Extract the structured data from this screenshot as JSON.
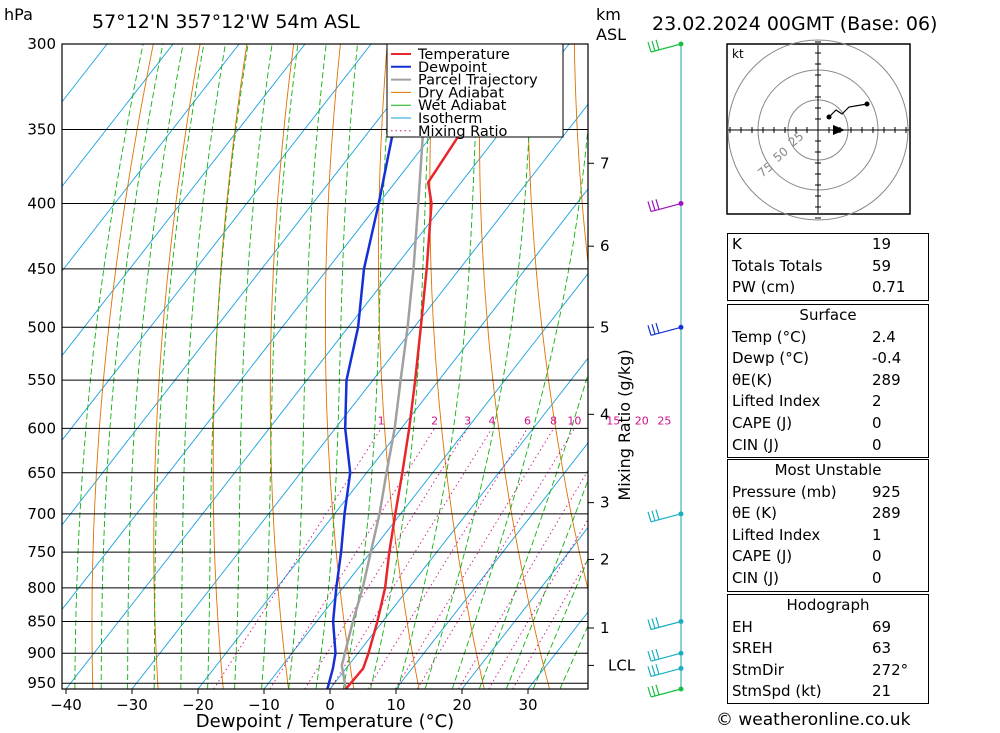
{
  "header": {
    "hpa_unit": "hPa",
    "location": "57°12'N  357°12'W  54m  ASL",
    "km_unit": "km",
    "asl_unit": "ASL",
    "datetime": "23.02.2024  00GMT  (Base: 06)"
  },
  "chart_data": {
    "type": "skew-t",
    "xlabel": "Dewpoint / Temperature (°C)",
    "ylabel_right": "Mixing Ratio (g/kg)",
    "temp_ticks": [
      -40,
      -30,
      -20,
      -10,
      0,
      10,
      20,
      30
    ],
    "pressure_levels": [
      300,
      350,
      400,
      450,
      500,
      550,
      600,
      650,
      700,
      750,
      800,
      850,
      900,
      950
    ],
    "km_ticks": [
      {
        "label": "7",
        "p": 372
      },
      {
        "label": "6",
        "p": 432
      },
      {
        "label": "5",
        "p": 500
      },
      {
        "label": "4",
        "p": 585
      },
      {
        "label": "3",
        "p": 686
      },
      {
        "label": "2",
        "p": 760
      },
      {
        "label": "1",
        "p": 860
      },
      {
        "label": "LCL",
        "p": 920
      }
    ],
    "mixing_ratio_labels": [
      "1",
      "2",
      "3",
      "4",
      "6",
      "8",
      "10",
      "15",
      "20",
      "25"
    ],
    "mixing_ratio_values": [
      1,
      2,
      3,
      4,
      6,
      8,
      10,
      15,
      20,
      25
    ],
    "legend": [
      "Temperature",
      "Dewpoint",
      "Parcel Trajectory",
      "Dry Adiabat",
      "Wet Adiabat",
      "Isotherm",
      "Mixing Ratio"
    ],
    "colors": {
      "temperature": "#e8262a",
      "dewpoint": "#1431d6",
      "parcel": "#a0a0a0",
      "dry_adiabat": "#e07000",
      "wet_adiabat": "#10b010",
      "isotherm": "#18a0e0",
      "mixing_ratio": "#d0108c"
    },
    "temperature_profile": [
      {
        "p": 960,
        "t": 2.4
      },
      {
        "p": 925,
        "t": 2.6
      },
      {
        "p": 900,
        "t": 1.6
      },
      {
        "p": 850,
        "t": -0.8
      },
      {
        "p": 800,
        "t": -3.6
      },
      {
        "p": 750,
        "t": -7.2
      },
      {
        "p": 700,
        "t": -10.8
      },
      {
        "p": 650,
        "t": -14.6
      },
      {
        "p": 600,
        "t": -18.8
      },
      {
        "p": 550,
        "t": -23.6
      },
      {
        "p": 500,
        "t": -29.0
      },
      {
        "p": 450,
        "t": -35.0
      },
      {
        "p": 400,
        "t": -42.0
      },
      {
        "p": 385,
        "t": -45.0
      },
      {
        "p": 350,
        "t": -46.0
      },
      {
        "p": 300,
        "t": -49.5
      }
    ],
    "dewpoint_profile": [
      {
        "p": 960,
        "t": -0.4
      },
      {
        "p": 925,
        "t": -2.0
      },
      {
        "p": 900,
        "t": -3.4
      },
      {
        "p": 850,
        "t": -7.5
      },
      {
        "p": 800,
        "t": -11.0
      },
      {
        "p": 750,
        "t": -14.5
      },
      {
        "p": 700,
        "t": -18.5
      },
      {
        "p": 650,
        "t": -22.5
      },
      {
        "p": 600,
        "t": -28.5
      },
      {
        "p": 550,
        "t": -34.0
      },
      {
        "p": 500,
        "t": -38.5
      },
      {
        "p": 450,
        "t": -44.5
      },
      {
        "p": 400,
        "t": -50.0
      },
      {
        "p": 350,
        "t": -56.5
      },
      {
        "p": 300,
        "t": -62.0
      }
    ],
    "parcel_profile": [
      {
        "p": 960,
        "t": 2.4
      },
      {
        "p": 920,
        "t": -1.0
      },
      {
        "p": 850,
        "t": -4.5
      },
      {
        "p": 800,
        "t": -7.0
      },
      {
        "p": 750,
        "t": -10.0
      },
      {
        "p": 700,
        "t": -13.2
      },
      {
        "p": 650,
        "t": -17.0
      },
      {
        "p": 600,
        "t": -21.0
      },
      {
        "p": 550,
        "t": -25.8
      },
      {
        "p": 500,
        "t": -31.0
      },
      {
        "p": 450,
        "t": -37.0
      },
      {
        "p": 400,
        "t": -44.0
      },
      {
        "p": 350,
        "t": -52.0
      },
      {
        "p": 300,
        "t": -61.0
      }
    ],
    "wind_barbs": [
      {
        "p": 300,
        "color": "#18c040"
      },
      {
        "p": 400,
        "color": "#a010c0"
      },
      {
        "p": 500,
        "color": "#1431d6"
      },
      {
        "p": 700,
        "color": "#18b0c0"
      },
      {
        "p": 850,
        "color": "#18b0c0"
      },
      {
        "p": 900,
        "color": "#18b0c0"
      },
      {
        "p": 925,
        "color": "#18b0c0"
      },
      {
        "p": 960,
        "color": "#18c040"
      }
    ]
  },
  "hodograph": {
    "unit_label": "kt",
    "ring_labels": [
      "25",
      "50",
      "75"
    ]
  },
  "indices": {
    "rows": [
      {
        "key": "K",
        "value": "19"
      },
      {
        "key": "Totals Totals",
        "value": "59"
      },
      {
        "key": "PW (cm)",
        "value": "0.71"
      }
    ]
  },
  "surface": {
    "title": "Surface",
    "rows": [
      {
        "key": "Temp (°C)",
        "value": "2.4"
      },
      {
        "key": "Dewp (°C)",
        "value": "-0.4"
      },
      {
        "key": "θE(K)",
        "value": "289"
      },
      {
        "key": "Lifted Index",
        "value": "2"
      },
      {
        "key": "CAPE (J)",
        "value": "0"
      },
      {
        "key": "CIN (J)",
        "value": "0"
      }
    ]
  },
  "most_unstable": {
    "title": "Most Unstable",
    "rows": [
      {
        "key": "Pressure (mb)",
        "value": "925"
      },
      {
        "key": "θE (K)",
        "value": "289"
      },
      {
        "key": "Lifted Index",
        "value": "1"
      },
      {
        "key": "CAPE (J)",
        "value": "0"
      },
      {
        "key": "CIN (J)",
        "value": "0"
      }
    ]
  },
  "hodograph_stats": {
    "title": "Hodograph",
    "rows": [
      {
        "key": "EH",
        "value": "69"
      },
      {
        "key": "SREH",
        "value": "63"
      },
      {
        "key": "StmDir",
        "value": "272°"
      },
      {
        "key": "StmSpd (kt)",
        "value": "21"
      }
    ]
  },
  "footer": {
    "copyright": "© weatheronline.co.uk"
  }
}
